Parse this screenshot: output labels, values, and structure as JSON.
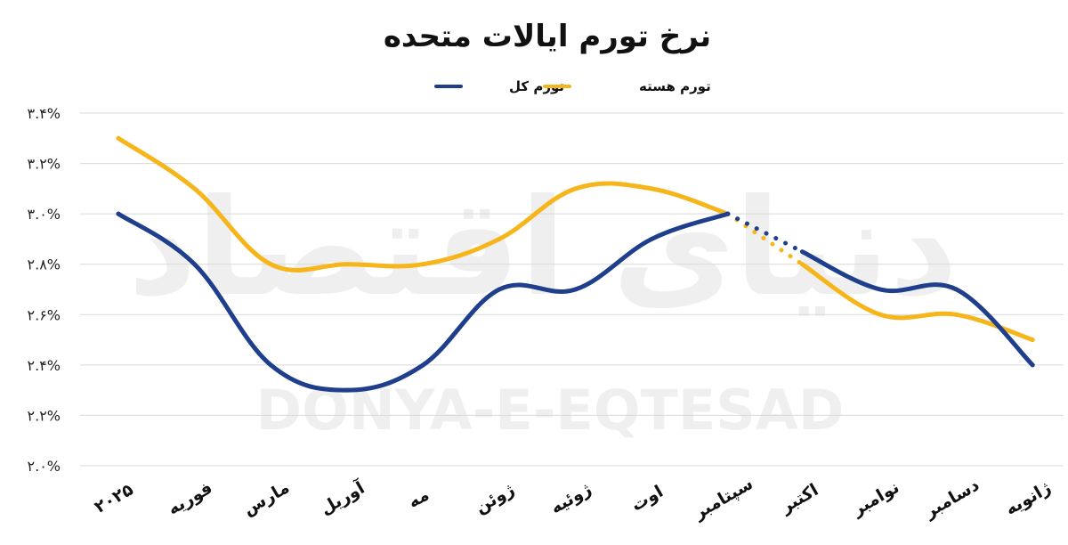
{
  "watermark": {
    "persian": "دنیای اقتصاد",
    "latin": "DONYA-E-EQTESAD"
  },
  "chart_data": {
    "type": "line",
    "title": "نرخ تورم ایالات متحده",
    "categories": [
      "۲۰۲۵",
      "فوریه",
      "مارس",
      "آوریل",
      "مه",
      "ژوئن",
      "ژوئیه",
      "اوت",
      "سپتامبر",
      "اکتبر",
      "نوامبر",
      "دسامبر",
      "ژانویه"
    ],
    "y_ticks": [
      "۲.۰%",
      "۲.۲%",
      "۲.۴%",
      "۲.۶%",
      "۲.۸%",
      "۳.۰%",
      "۳.۲%",
      "۳.۴%"
    ],
    "ylim": [
      2.0,
      3.4
    ],
    "grid": true,
    "legend_position": "top-center",
    "series": [
      {
        "name": "تورم کل",
        "color": "#1f3f8c",
        "values": [
          3.0,
          2.8,
          2.4,
          2.3,
          2.4,
          2.7,
          2.7,
          2.9,
          3.0,
          null,
          2.7,
          2.7,
          2.4
        ],
        "dotted_segment": {
          "from": 3.0,
          "to": 2.85
        },
        "after_gap_start": 2.85
      },
      {
        "name": "تورم هسته",
        "color": "#f5b51b",
        "values": [
          3.3,
          3.1,
          2.8,
          2.8,
          2.8,
          2.9,
          3.1,
          3.1,
          3.0,
          null,
          2.6,
          2.6,
          2.5
        ],
        "dotted_segment": {
          "from": 3.0,
          "to": 2.8
        },
        "after_gap_start": 2.8
      }
    ]
  }
}
